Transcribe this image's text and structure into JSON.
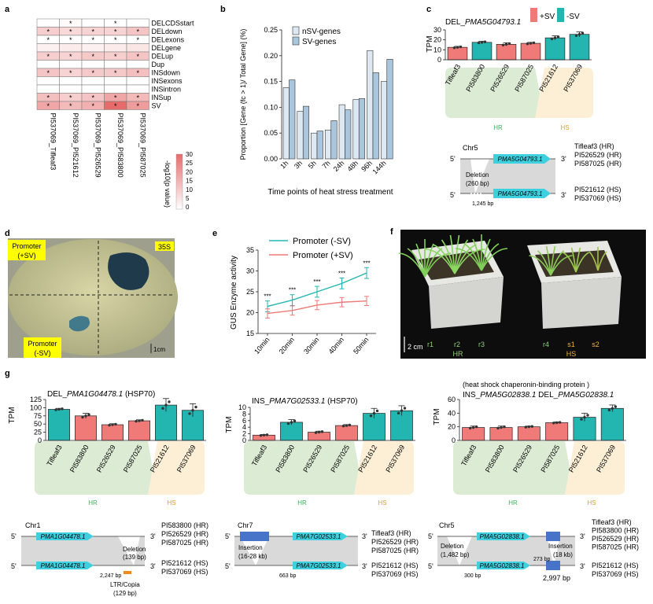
{
  "panels": {
    "a": {
      "label": "a",
      "rows": [
        "DELCDSstart",
        "DELdown",
        "DELexons",
        "DELgene",
        "DELup",
        "Dup",
        "INSdown",
        "INSexons",
        "INSintron",
        "INSup",
        "SV"
      ],
      "cols": [
        "PI537069_Tifleaf3",
        "PI537069_PI521612",
        "PI537069_PI526529",
        "PI537069_PI583800",
        "PI537069_PI587025"
      ],
      "values": [
        [
          0,
          1,
          0,
          0,
          0
        ],
        [
          10,
          8,
          9,
          9,
          12
        ],
        [
          0,
          0,
          0,
          0,
          0
        ],
        [
          3,
          4,
          3,
          4,
          5
        ],
        [
          10,
          9,
          11,
          10,
          12
        ],
        [
          0,
          0,
          0,
          0,
          0
        ],
        [
          12,
          9,
          11,
          11,
          13
        ],
        [
          0,
          0,
          0,
          0,
          0
        ],
        [
          0,
          0,
          0,
          0,
          0
        ],
        [
          13,
          10,
          12,
          18,
          14
        ],
        [
          18,
          14,
          16,
          30,
          20
        ]
      ],
      "stars": [
        [
          0,
          1,
          0,
          1,
          0
        ],
        [
          1,
          1,
          1,
          1,
          1
        ],
        [
          1,
          1,
          1,
          1,
          1
        ],
        [
          0,
          0,
          0,
          0,
          0
        ],
        [
          1,
          1,
          1,
          1,
          1
        ],
        [
          0,
          0,
          0,
          0,
          0
        ],
        [
          1,
          1,
          1,
          1,
          1
        ],
        [
          0,
          0,
          0,
          0,
          0
        ],
        [
          0,
          0,
          0,
          0,
          0
        ],
        [
          1,
          1,
          1,
          1,
          1
        ],
        [
          1,
          1,
          1,
          1,
          1
        ]
      ],
      "star_char": "*",
      "legend_label": "-log10(p value)",
      "legend_ticks": [
        "30",
        "25",
        "20",
        "15",
        "10",
        "5",
        "0"
      ],
      "cell_color_high": "#e66b6b",
      "cell_color_low": "#ffffff"
    },
    "b": {
      "label": "b",
      "xlabel": "Time points of heat stress treatment"
    },
    "c": {
      "label": "c",
      "gene_prefix": "DEL_",
      "gene_name": "PMA5G04793.1",
      "ylabel": "TPM",
      "legend": [
        "+SV",
        "-SV"
      ],
      "hr_label": "HR",
      "hs_label": "HS",
      "chrom": "Chr5",
      "gene_box": "PMA5G04793.1",
      "deletion_text": "Deletion",
      "deletion_size": "(260 bp)",
      "bp_label": "1,245 bp",
      "end5": "5'",
      "end3": "3'",
      "top_lines": [
        "Tifleaf3 (HR)",
        "PI526529 (HR)",
        "PI587025 (HR)"
      ],
      "bottom_lines": [
        "PI521612 (HS)",
        "PI537069 (HS)"
      ]
    },
    "d": {
      "label": "d",
      "promoter_plus": [
        "Promoter",
        "(+SV)"
      ],
      "label_35s": "35S",
      "promoter_minus": [
        "Promoter",
        "(-SV)"
      ],
      "scale": "1cm"
    },
    "e": {
      "label": "e",
      "ylabel": "GUS Enzyme activity",
      "star_text": "***"
    },
    "f": {
      "label": "f",
      "plants": [
        "r1",
        "r2",
        "r3",
        "r4",
        "s1",
        "s2"
      ],
      "scale": "2 cm",
      "hr_label": "HR",
      "hs_label": "HS"
    },
    "g": {
      "label": "g",
      "hr_label": "HR",
      "hs_label": "HS",
      "end5": "5'",
      "end3": "3'",
      "g1": {
        "title_prefix": "DEL_",
        "gene": "PMA1G04478.1",
        "title_suffix": " (HSP70)",
        "ylabel": "TPM",
        "chrom": "Chr1",
        "gene_box": "PMA1G04478.1",
        "del_text": "Deletion",
        "del_size": "(139 bp)",
        "bp_label": "2,247 bp",
        "ltr_text": "LTR/Copia",
        "ltr_size": "(129 bp)",
        "top_lines": [
          "PI583800 (HR)",
          "PI526529 (HR)",
          "PI587025 (HR)"
        ],
        "bottom_lines": [
          "PI521612 (HS)",
          "PI537069 (HS)"
        ]
      },
      "g2": {
        "title_prefix": "INS_",
        "gene": "PMA7G02533.1",
        "title_suffix": " (HSP70)",
        "ylabel": "TPM",
        "chrom": "Chr7",
        "gene_box": "PMA7G02533.1",
        "ins_text": "Insertion",
        "ins_size": "(16-28 kb)",
        "bp_label": "663 bp",
        "top_lines": [
          "Tifleaf3 (HR)",
          "PI526529 (HR)",
          "PI587025 (HR)"
        ],
        "bottom_lines": [
          "PI521612 (HS)",
          "PI537069 (HS)"
        ]
      },
      "g3": {
        "heading": "(heat shock chaperonin-binding protein )",
        "title_a_prefix": "INS_",
        "title_a_gene": "PMA5G02838.1",
        "title_b_prefix": " DEL_",
        "title_b_gene": "PMA5G02838.1",
        "ylabel": "TPM",
        "chrom": "Chr5",
        "gene_box": "PMA5G02838.1",
        "del_text": "Deletion",
        "del_size": "(1,482 bp)",
        "ins_text": "Insertion",
        "ins_size": "(18 kb)",
        "bp_273": "273 bp",
        "bp_300": "300 bp",
        "bp_2997": "2,997 bp",
        "top_lines": [
          "Tifleaf3 (HR)",
          "PI583800 (HR)",
          "PI526529 (HR)",
          "PI587025 (HR)"
        ],
        "bottom_lines": [
          "PI521612 (HS)",
          "PI537069 (HS)"
        ]
      }
    }
  },
  "chart_data": [
    {
      "id": "b",
      "type": "bar",
      "categories": [
        "1h",
        "3h",
        "5h",
        "7h",
        "24h",
        "48h",
        "96h",
        "144h"
      ],
      "series": [
        {
          "name": "nSV-genes",
          "values": [
            0.138,
            0.092,
            0.05,
            0.056,
            0.105,
            0.115,
            0.21,
            0.15
          ]
        },
        {
          "name": "SV-genes",
          "values": [
            0.153,
            0.102,
            0.054,
            0.074,
            0.095,
            0.117,
            0.167,
            0.193
          ]
        }
      ],
      "ylabel": "Proportion [Gene (fc > 1)/ Total Gene] (%)",
      "yticks": [
        "0.00",
        "0.05",
        "0.10",
        "0.15",
        "0.20",
        "0.25"
      ],
      "ylim": [
        0,
        0.25
      ],
      "colors": [
        "#dde8f2",
        "#a9c6dd"
      ]
    },
    {
      "id": "c",
      "type": "bar",
      "categories": [
        "Tifleaf3",
        "PI583800",
        "PI526529",
        "PI587025",
        "PI521612",
        "PI537069"
      ],
      "values": [
        12.5,
        17.5,
        15.5,
        16.5,
        22,
        25.5
      ],
      "errors": [
        1,
        1,
        1.5,
        1,
        2,
        2.5
      ],
      "group": [
        "+SV",
        "-SV",
        "+SV",
        "+SV",
        "-SV",
        "-SV"
      ],
      "yticks": [
        "0",
        "10",
        "20",
        "30"
      ],
      "ylim": [
        0,
        30
      ],
      "colors": {
        "+SV": "#f07a78",
        "-SV": "#23b5b0"
      }
    },
    {
      "id": "e",
      "type": "line",
      "categories": [
        "10min",
        "20min",
        "30min",
        "40min",
        "50min"
      ],
      "series": [
        {
          "name": "Promoter (-SV)",
          "values": [
            21.5,
            23,
            25,
            27,
            29.5
          ],
          "errors": [
            1.3,
            1.3,
            1.3,
            1.3,
            1.3
          ]
        },
        {
          "name": "Promoter (+SV)",
          "values": [
            19.8,
            20.5,
            21.8,
            22.5,
            22.8
          ],
          "errors": [
            1.1,
            1.1,
            1.1,
            1.1,
            1.1
          ]
        }
      ],
      "yticks": [
        "15",
        "20",
        "25",
        "30",
        "35"
      ],
      "ylim": [
        15,
        35
      ],
      "colors": [
        "#23b5b0",
        "#f07a78"
      ]
    },
    {
      "id": "g1",
      "type": "bar",
      "categories": [
        "Tifleaf3",
        "PI583800",
        "PI526529",
        "PI587025",
        "PI521612",
        "PI537069"
      ],
      "values": [
        95,
        75,
        48,
        60,
        108,
        92
      ],
      "errors": [
        3,
        8,
        3,
        3,
        20,
        20
      ],
      "group": [
        "-SV",
        "+SV",
        "+SV",
        "+SV",
        "-SV",
        "-SV"
      ],
      "yticks": [
        "0",
        "25",
        "50",
        "75",
        "100",
        "125"
      ],
      "ylim": [
        0,
        125
      ],
      "colors": {
        "+SV": "#f07a78",
        "-SV": "#23b5b0"
      }
    },
    {
      "id": "g2",
      "type": "bar",
      "categories": [
        "Tifleaf3",
        "PI583800",
        "PI526529",
        "PI587025",
        "PI521612",
        "PI537069"
      ],
      "values": [
        1.6,
        5.5,
        2.5,
        4.5,
        8.2,
        9
      ],
      "errors": [
        0.2,
        0.8,
        0.3,
        0.3,
        1.5,
        1.5
      ],
      "group": [
        "+SV",
        "-SV",
        "+SV",
        "+SV",
        "-SV",
        "-SV"
      ],
      "yticks": [
        "0",
        "2",
        "4",
        "6",
        "8",
        "10"
      ],
      "ylim": [
        0,
        10
      ],
      "colors": {
        "+SV": "#f07a78",
        "-SV": "#23b5b0"
      }
    },
    {
      "id": "g3",
      "type": "bar",
      "categories": [
        "Tifleaf3",
        "PI583800",
        "PI526529",
        "PI587025",
        "PI521612",
        "PI537069"
      ],
      "values": [
        19,
        19,
        20,
        26,
        34,
        47
      ],
      "errors": [
        2,
        2,
        1,
        1,
        6,
        5
      ],
      "group": [
        "+SV",
        "+SV",
        "+SV",
        "+SV",
        "-SV",
        "-SV"
      ],
      "yticks": [
        "0",
        "20",
        "40",
        "60"
      ],
      "ylim": [
        0,
        60
      ],
      "colors": {
        "+SV": "#f07a78",
        "-SV": "#23b5b0"
      }
    }
  ]
}
